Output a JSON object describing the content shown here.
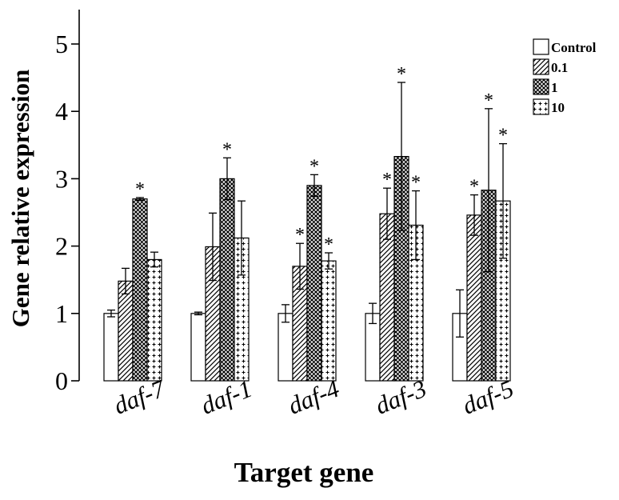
{
  "chart_data": {
    "type": "bar",
    "xlabel": "Target gene",
    "ylabel": "Gene relative expression",
    "ylim": [
      0,
      5
    ],
    "yticks": [
      "0",
      "1",
      "2",
      "3",
      "4",
      "5"
    ],
    "categories": [
      "daf-7",
      "daf-1",
      "daf-4",
      "daf-3",
      "daf-5"
    ],
    "legend_position": "top-right",
    "significance_mark": "*",
    "series": [
      {
        "name": "Control",
        "pattern": "none",
        "values": [
          1.0,
          1.0,
          1.0,
          1.0,
          1.0
        ],
        "errors": [
          0.05,
          0.02,
          0.13,
          0.15,
          0.35
        ],
        "significant": [
          false,
          false,
          false,
          false,
          false
        ]
      },
      {
        "name": "0.1",
        "pattern": "diagonal",
        "values": [
          1.48,
          1.99,
          1.7,
          2.48,
          2.46
        ],
        "errors": [
          0.19,
          0.5,
          0.34,
          0.38,
          0.3
        ],
        "significant": [
          false,
          false,
          true,
          true,
          true
        ]
      },
      {
        "name": "1",
        "pattern": "crosshatch",
        "values": [
          2.7,
          3.0,
          2.9,
          3.33,
          2.83
        ],
        "errors": [
          0.02,
          0.31,
          0.16,
          1.1,
          1.21
        ],
        "significant": [
          true,
          true,
          true,
          true,
          true
        ]
      },
      {
        "name": "10",
        "pattern": "plus",
        "values": [
          1.8,
          2.12,
          1.78,
          2.31,
          2.67
        ],
        "errors": [
          0.11,
          0.55,
          0.12,
          0.51,
          0.85
        ],
        "significant": [
          false,
          false,
          true,
          true,
          true
        ]
      }
    ]
  }
}
